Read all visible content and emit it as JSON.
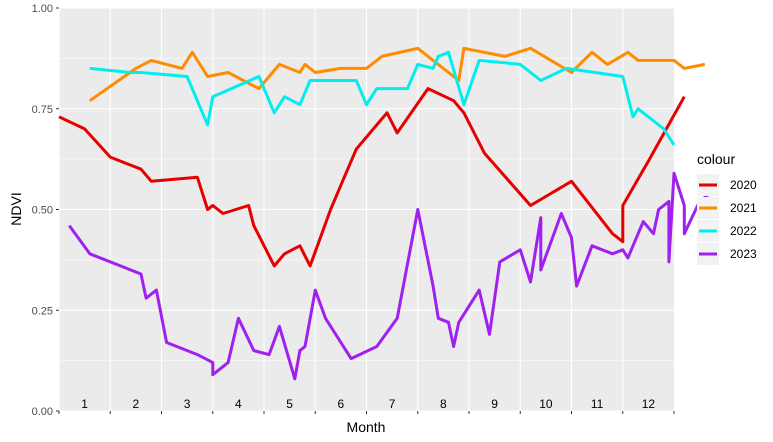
{
  "chart_data": {
    "type": "line",
    "xlabel": "Month",
    "ylabel": "NDVI",
    "xlim": [
      1,
      13
    ],
    "ylim": [
      0,
      1
    ],
    "y_ticks": [
      "0.00",
      "0.25",
      "0.50",
      "0.75",
      "1.00"
    ],
    "x_tick_values": [
      1,
      2,
      3,
      4,
      5,
      6,
      7,
      8,
      9,
      10,
      11,
      12
    ],
    "month_labels": [
      "1",
      "2",
      "3",
      "4",
      "5",
      "6",
      "7",
      "8",
      "9",
      "10",
      "11",
      "12"
    ],
    "grid": true,
    "legend_title": "colour",
    "legend_position": "right",
    "series": [
      {
        "name": "2020",
        "color": "#E60000",
        "points": [
          [
            1.0,
            0.73
          ],
          [
            1.5,
            0.7
          ],
          [
            2.0,
            0.63
          ],
          [
            2.6,
            0.6
          ],
          [
            2.8,
            0.57
          ],
          [
            3.7,
            0.58
          ],
          [
            3.9,
            0.5
          ],
          [
            4.0,
            0.51
          ],
          [
            4.2,
            0.49
          ],
          [
            4.7,
            0.51
          ],
          [
            4.8,
            0.46
          ],
          [
            5.2,
            0.36
          ],
          [
            5.4,
            0.39
          ],
          [
            5.7,
            0.41
          ],
          [
            5.9,
            0.36
          ],
          [
            6.3,
            0.5
          ],
          [
            6.6,
            0.59
          ],
          [
            6.8,
            0.65
          ],
          [
            7.4,
            0.74
          ],
          [
            7.6,
            0.69
          ],
          [
            8.2,
            0.8
          ],
          [
            8.7,
            0.77
          ],
          [
            8.9,
            0.74
          ],
          [
            9.3,
            0.64
          ],
          [
            10.2,
            0.51
          ],
          [
            11.0,
            0.57
          ],
          [
            11.8,
            0.44
          ],
          [
            12.0,
            0.42
          ],
          [
            12.0,
            0.51
          ],
          [
            12.5,
            0.62
          ],
          [
            13.2,
            0.78
          ]
        ]
      },
      {
        "name": "2021",
        "color": "#FF8C00",
        "points": [
          [
            1.6,
            0.77
          ],
          [
            2.5,
            0.85
          ],
          [
            2.8,
            0.87
          ],
          [
            3.4,
            0.85
          ],
          [
            3.6,
            0.89
          ],
          [
            3.9,
            0.83
          ],
          [
            4.3,
            0.84
          ],
          [
            4.9,
            0.8
          ],
          [
            5.3,
            0.86
          ],
          [
            5.7,
            0.84
          ],
          [
            5.8,
            0.86
          ],
          [
            6.0,
            0.84
          ],
          [
            6.5,
            0.85
          ],
          [
            7.0,
            0.85
          ],
          [
            7.3,
            0.88
          ],
          [
            8.0,
            0.9
          ],
          [
            8.2,
            0.88
          ],
          [
            8.8,
            0.82
          ],
          [
            8.9,
            0.9
          ],
          [
            9.7,
            0.88
          ],
          [
            10.2,
            0.9
          ],
          [
            11.0,
            0.84
          ],
          [
            11.4,
            0.89
          ],
          [
            11.7,
            0.86
          ],
          [
            12.1,
            0.89
          ],
          [
            12.3,
            0.87
          ],
          [
            13.0,
            0.87
          ],
          [
            13.2,
            0.85
          ],
          [
            13.6,
            0.86
          ]
        ]
      },
      {
        "name": "2022",
        "color": "#00EEEE",
        "points": [
          [
            1.6,
            0.85
          ],
          [
            2.4,
            0.84
          ],
          [
            2.6,
            0.84
          ],
          [
            3.5,
            0.83
          ],
          [
            3.9,
            0.71
          ],
          [
            4.0,
            0.78
          ],
          [
            4.9,
            0.83
          ],
          [
            5.2,
            0.74
          ],
          [
            5.4,
            0.78
          ],
          [
            5.7,
            0.76
          ],
          [
            5.9,
            0.82
          ],
          [
            6.8,
            0.82
          ],
          [
            7.0,
            0.76
          ],
          [
            7.2,
            0.8
          ],
          [
            7.8,
            0.8
          ],
          [
            8.0,
            0.86
          ],
          [
            8.3,
            0.85
          ],
          [
            8.4,
            0.88
          ],
          [
            8.6,
            0.89
          ],
          [
            8.9,
            0.76
          ],
          [
            9.2,
            0.87
          ],
          [
            10.0,
            0.86
          ],
          [
            10.4,
            0.82
          ],
          [
            10.9,
            0.85
          ],
          [
            12.0,
            0.83
          ],
          [
            12.2,
            0.73
          ],
          [
            12.3,
            0.75
          ],
          [
            12.8,
            0.7
          ],
          [
            13.0,
            0.66
          ]
        ]
      },
      {
        "name": "2023",
        "color": "#A020F0",
        "points": [
          [
            1.2,
            0.46
          ],
          [
            1.6,
            0.39
          ],
          [
            2.2,
            0.36
          ],
          [
            2.6,
            0.34
          ],
          [
            2.7,
            0.28
          ],
          [
            2.9,
            0.3
          ],
          [
            3.1,
            0.17
          ],
          [
            3.7,
            0.14
          ],
          [
            4.0,
            0.12
          ],
          [
            4.0,
            0.09
          ],
          [
            4.3,
            0.12
          ],
          [
            4.5,
            0.23
          ],
          [
            4.8,
            0.15
          ],
          [
            5.1,
            0.14
          ],
          [
            5.3,
            0.21
          ],
          [
            5.6,
            0.08
          ],
          [
            5.7,
            0.15
          ],
          [
            5.8,
            0.16
          ],
          [
            6.0,
            0.3
          ],
          [
            6.2,
            0.23
          ],
          [
            6.7,
            0.13
          ],
          [
            7.2,
            0.16
          ],
          [
            7.6,
            0.23
          ],
          [
            8.0,
            0.5
          ],
          [
            8.3,
            0.31
          ],
          [
            8.4,
            0.23
          ],
          [
            8.6,
            0.22
          ],
          [
            8.7,
            0.16
          ],
          [
            8.8,
            0.22
          ],
          [
            9.2,
            0.3
          ],
          [
            9.4,
            0.19
          ],
          [
            9.6,
            0.37
          ],
          [
            10.0,
            0.4
          ],
          [
            10.2,
            0.32
          ],
          [
            10.4,
            0.48
          ],
          [
            10.4,
            0.35
          ],
          [
            10.8,
            0.49
          ],
          [
            11.0,
            0.43
          ],
          [
            11.1,
            0.31
          ],
          [
            11.4,
            0.41
          ],
          [
            11.8,
            0.39
          ],
          [
            12.0,
            0.4
          ],
          [
            12.1,
            0.38
          ],
          [
            12.3,
            0.44
          ],
          [
            12.4,
            0.47
          ],
          [
            12.6,
            0.44
          ],
          [
            12.7,
            0.5
          ],
          [
            12.9,
            0.52
          ],
          [
            12.9,
            0.37
          ],
          [
            13.0,
            0.59
          ],
          [
            13.2,
            0.51
          ],
          [
            13.2,
            0.44
          ],
          [
            13.5,
            0.52
          ],
          [
            13.7,
            0.54
          ]
        ]
      }
    ]
  }
}
